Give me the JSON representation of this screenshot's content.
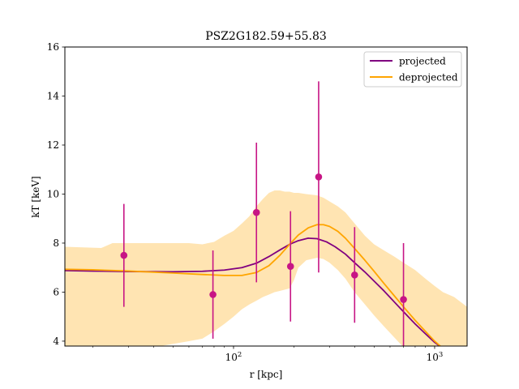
{
  "chart_data": {
    "type": "scatter",
    "title": "PSZ2G182.59+55.83",
    "xlabel": "r [kpc]",
    "ylabel": "kT [keV]",
    "xscale": "log",
    "xlim": [
      14.5,
      1450
    ],
    "ylim": [
      3.8,
      16
    ],
    "yticks": [
      4,
      6,
      8,
      10,
      12,
      14,
      16
    ],
    "xticks_major": [
      {
        "value": 100,
        "base": "10",
        "exp": "2"
      },
      {
        "value": 1000,
        "base": "10",
        "exp": "3"
      }
    ],
    "grid": false,
    "legend_position": "top-right",
    "colors": {
      "points": "#c71585",
      "projected": "#800080",
      "deprojected": "#ffa500",
      "band": "#ffa500"
    },
    "points": [
      {
        "x": 28.5,
        "y": 7.5,
        "err": 2.1
      },
      {
        "x": 79,
        "y": 5.9,
        "err": 1.8
      },
      {
        "x": 130,
        "y": 9.25,
        "err": 2.85
      },
      {
        "x": 192,
        "y": 7.05,
        "err": 2.25
      },
      {
        "x": 265,
        "y": 10.7,
        "err": 3.9
      },
      {
        "x": 400,
        "y": 6.7,
        "err": 1.95
      },
      {
        "x": 700,
        "y": 5.7,
        "err": 2.3
      }
    ],
    "series": [
      {
        "name": "projected",
        "x": [
          14.5,
          20,
          30,
          50,
          70,
          90,
          110,
          130,
          150,
          170,
          190,
          210,
          235,
          260,
          290,
          320,
          360,
          400,
          450,
          500,
          560,
          630,
          700,
          800,
          900,
          1000,
          1100,
          1250,
          1450
        ],
        "y": [
          6.88,
          6.86,
          6.84,
          6.83,
          6.85,
          6.9,
          7.0,
          7.18,
          7.45,
          7.72,
          7.95,
          8.1,
          8.2,
          8.18,
          8.05,
          7.85,
          7.55,
          7.2,
          6.82,
          6.45,
          6.05,
          5.6,
          5.2,
          4.7,
          4.3,
          3.95,
          3.7,
          3.4,
          3.1
        ]
      },
      {
        "name": "deprojected",
        "x": [
          14.5,
          20,
          30,
          50,
          70,
          90,
          110,
          130,
          150,
          170,
          190,
          210,
          235,
          260,
          280,
          300,
          330,
          360,
          400,
          450,
          500,
          560,
          630,
          700,
          800,
          900,
          1000,
          1100,
          1250,
          1450
        ],
        "y": [
          6.93,
          6.91,
          6.86,
          6.78,
          6.72,
          6.68,
          6.68,
          6.8,
          7.08,
          7.5,
          7.95,
          8.33,
          8.62,
          8.75,
          8.75,
          8.68,
          8.48,
          8.2,
          7.78,
          7.3,
          6.85,
          6.35,
          5.85,
          5.4,
          4.85,
          4.4,
          4.0,
          3.7,
          3.35,
          3.0
        ]
      }
    ],
    "band": {
      "x": [
        14.5,
        22,
        25,
        40,
        60,
        70,
        80,
        90,
        100,
        110,
        120,
        130,
        140,
        150,
        160,
        170,
        180,
        190,
        200,
        210,
        230,
        260,
        280,
        300,
        330,
        360,
        400,
        450,
        500,
        560,
        630,
        700,
        800,
        900,
        1000,
        1100,
        1250,
        1450
      ],
      "upper": [
        7.85,
        7.8,
        8.0,
        8.0,
        8.0,
        7.95,
        8.05,
        8.3,
        8.5,
        8.8,
        9.1,
        9.5,
        9.8,
        10.05,
        10.15,
        10.15,
        10.1,
        10.1,
        10.05,
        10.05,
        10.0,
        9.95,
        9.85,
        9.7,
        9.5,
        9.25,
        8.8,
        8.3,
        7.95,
        7.7,
        7.45,
        7.2,
        6.9,
        6.55,
        6.25,
        6.0,
        5.8,
        5.4
      ],
      "lower": [
        3.75,
        3.75,
        3.75,
        3.75,
        4.0,
        4.1,
        4.4,
        4.7,
        5.0,
        5.3,
        5.5,
        5.65,
        5.8,
        5.9,
        6.0,
        6.05,
        6.1,
        6.15,
        6.5,
        7.0,
        7.3,
        7.4,
        7.35,
        7.2,
        6.9,
        6.55,
        6.0,
        5.5,
        5.05,
        4.6,
        4.15,
        3.75,
        3.5,
        3.3,
        3.2,
        3.1,
        3.0,
        2.9
      ]
    }
  }
}
